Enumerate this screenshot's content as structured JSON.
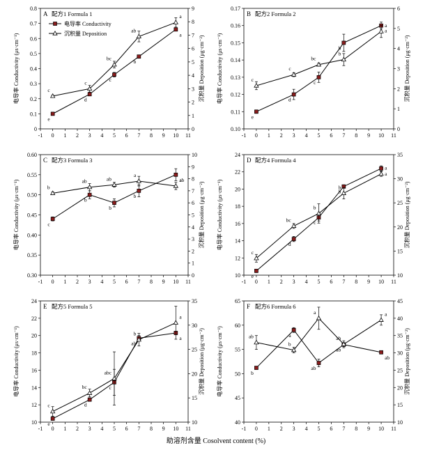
{
  "figure": {
    "x_axis_label": "助溶剂含量 Cosolvent content (%)"
  },
  "colors": {
    "line": "#000000",
    "conductivity_marker": "#8b1c1c",
    "deposition_marker": "#ffffff"
  },
  "chart_data": [
    {
      "type": "line",
      "panel": "A",
      "title": "配方1 Formula 1",
      "xlabel": "",
      "ylabel": "电导率 Conductivity (μs·cm⁻¹)",
      "y2label": "沉积量 Deposition (μg·cm⁻²)",
      "xlim": [
        -1,
        11
      ],
      "xticks": [
        -1,
        0,
        1,
        2,
        3,
        4,
        5,
        6,
        7,
        8,
        9,
        10,
        11
      ],
      "ylim": [
        0,
        0.8
      ],
      "yticks": [
        "0",
        "0.1",
        "0.2",
        "0.3",
        "0.4",
        "0.5",
        "0.6",
        "0.7",
        "0.8"
      ],
      "y2lim": [
        0,
        9
      ],
      "y2ticks": [
        "0",
        "1",
        "2",
        "3",
        "4",
        "5",
        "6",
        "7",
        "8",
        "9"
      ],
      "legend": [
        "电导率 Conductivity",
        "沉积量 Deposition"
      ],
      "legend_position": "top-left",
      "x": [
        0,
        3,
        5,
        7,
        10
      ],
      "series": [
        {
          "name": "电导率 Conductivity",
          "axis": "left",
          "marker": "square",
          "values": [
            0.1,
            0.23,
            0.36,
            0.48,
            0.66
          ],
          "errors": [
            0.005,
            0.01,
            0.015,
            0.01,
            0.01
          ],
          "letters": [
            "e",
            "d",
            "c",
            "b",
            "a"
          ]
        },
        {
          "name": "沉积量 Deposition",
          "axis": "right",
          "marker": "triangle",
          "values": [
            2.45,
            3.0,
            4.8,
            6.9,
            7.95
          ],
          "errors": [
            0.08,
            0.25,
            0.25,
            0.4,
            0.35
          ],
          "letters": [
            "c",
            "c",
            "bc",
            "ab",
            "a"
          ]
        }
      ]
    },
    {
      "type": "line",
      "panel": "B",
      "title": "配方2 Formula 2",
      "xlabel": "",
      "ylabel": "电导率 Conductivity (μs·cm⁻¹)",
      "y2label": "沉积量 Deposition (μg·cm⁻²)",
      "xlim": [
        -1,
        11
      ],
      "xticks": [
        -1,
        0,
        1,
        2,
        3,
        4,
        5,
        6,
        7,
        8,
        9,
        10,
        11
      ],
      "ylim": [
        0.1,
        0.17
      ],
      "yticks": [
        "0.10",
        "0.11",
        "0.12",
        "0.13",
        "0.14",
        "0.15",
        "0.16",
        "0.17"
      ],
      "y2lim": [
        0,
        6
      ],
      "y2ticks": [
        "0",
        "1",
        "2",
        "3",
        "4",
        "5",
        "6"
      ],
      "x": [
        0,
        3,
        5,
        7,
        10
      ],
      "series": [
        {
          "name": "电导率 Conductivity",
          "axis": "left",
          "marker": "square",
          "values": [
            0.11,
            0.12,
            0.13,
            0.15,
            0.16
          ],
          "errors": [
            0.001,
            0.003,
            0.003,
            0.005,
            0.002
          ],
          "letters": [
            "e",
            "d",
            "c",
            "b",
            "a"
          ]
        },
        {
          "name": "沉积量 Deposition",
          "axis": "right",
          "marker": "triangle",
          "values": [
            2.15,
            2.7,
            3.2,
            3.45,
            4.85
          ],
          "errors": [
            0.2,
            0.1,
            0.08,
            0.3,
            0.3
          ],
          "letters": [
            "c",
            "c",
            "bc",
            "b",
            "a"
          ]
        }
      ]
    },
    {
      "type": "line",
      "panel": "C",
      "title": "配方3 Formula 3",
      "xlabel": "",
      "ylabel": "电导率 Conductivity (μs·cm⁻¹)",
      "y2label": "沉积量 Deposition (μg·cm⁻²)",
      "xlim": [
        -1,
        11
      ],
      "xticks": [
        -1,
        0,
        1,
        2,
        3,
        4,
        5,
        6,
        7,
        8,
        9,
        10,
        11
      ],
      "ylim": [
        0.3,
        0.6
      ],
      "yticks": [
        "0.30",
        "0.35",
        "0.40",
        "0.45",
        "0.50",
        "0.55",
        "0.60"
      ],
      "y2lim": [
        0,
        10
      ],
      "y2ticks": [
        "0",
        "1",
        "2",
        "3",
        "4",
        "5",
        "6",
        "7",
        "8",
        "9",
        "10"
      ],
      "x": [
        0,
        3,
        5,
        7,
        10
      ],
      "series": [
        {
          "name": "电导率 Conductivity",
          "axis": "left",
          "marker": "square",
          "values": [
            0.44,
            0.5,
            0.48,
            0.51,
            0.55
          ],
          "errors": [
            0.005,
            0.01,
            0.01,
            0.015,
            0.015
          ],
          "letters": [
            "c",
            "b",
            "b",
            "b",
            "a"
          ]
        },
        {
          "name": "沉积量 Deposition",
          "axis": "right",
          "marker": "triangle",
          "values": [
            6.8,
            7.3,
            7.5,
            7.8,
            7.4
          ],
          "errors": [
            0.1,
            0.3,
            0.2,
            0.4,
            0.3
          ],
          "letters": [
            "b",
            "ab",
            "ab",
            "a",
            "ab"
          ]
        }
      ]
    },
    {
      "type": "line",
      "panel": "D",
      "title": "配方4 Formula 4",
      "xlabel": "",
      "ylabel": "电导率 Conductivity (μs·cm⁻¹)",
      "y2label": "沉积量 Deposition (μg·cm⁻²)",
      "xlim": [
        -1,
        11
      ],
      "xticks": [
        -1,
        0,
        1,
        2,
        3,
        4,
        5,
        6,
        7,
        8,
        9,
        10,
        11
      ],
      "ylim": [
        10,
        24
      ],
      "yticks": [
        "10",
        "12",
        "14",
        "16",
        "18",
        "20",
        "22",
        "24"
      ],
      "y2lim": [
        10,
        35
      ],
      "y2ticks": [
        "10",
        "15",
        "20",
        "25",
        "30",
        "35"
      ],
      "x": [
        0,
        3,
        5,
        7,
        10
      ],
      "series": [
        {
          "name": "电导率 Conductivity",
          "axis": "left",
          "marker": "square",
          "values": [
            10.5,
            14.2,
            16.7,
            20.3,
            22.4
          ],
          "errors": [
            0.2,
            0.3,
            0.4,
            0.2,
            0.3
          ],
          "letters": [
            "e",
            "d",
            "c",
            "b",
            "a"
          ]
        },
        {
          "name": "沉积量 Deposition",
          "axis": "right",
          "marker": "triangle",
          "values": [
            13.5,
            20.2,
            22.8,
            27.0,
            31.0
          ],
          "errors": [
            0.8,
            0.5,
            2.0,
            1.2,
            0.5
          ],
          "letters": [
            "c",
            "bc",
            "b",
            "b",
            "a"
          ]
        }
      ]
    },
    {
      "type": "line",
      "panel": "E",
      "title": "配方5 Formula 5",
      "xlabel": "",
      "ylabel": "电导率 Conductivity (μs·cm⁻¹)",
      "y2label": "沉积量 Deposition (μg·cm⁻²)",
      "xlim": [
        -1,
        11
      ],
      "xticks": [
        -1,
        0,
        1,
        2,
        3,
        4,
        5,
        6,
        7,
        8,
        9,
        10,
        11
      ],
      "ylim": [
        10,
        24
      ],
      "yticks": [
        "10",
        "12",
        "14",
        "16",
        "18",
        "20",
        "22",
        "24"
      ],
      "y2lim": [
        10,
        35
      ],
      "y2ticks": [
        "10",
        "15",
        "20",
        "25",
        "30",
        "35"
      ],
      "x": [
        0,
        3,
        5,
        7,
        10
      ],
      "series": [
        {
          "name": "电导率 Conductivity",
          "axis": "left",
          "marker": "square",
          "values": [
            10.4,
            12.6,
            14.6,
            19.7,
            20.3
          ],
          "errors": [
            0.1,
            0.2,
            1.5,
            0.3,
            0.2
          ],
          "letters": [
            "e",
            "d",
            "c",
            "ab",
            "a"
          ]
        },
        {
          "name": "沉积量 Deposition",
          "axis": "right",
          "marker": "triangle",
          "values": [
            12.2,
            16.0,
            19.0,
            27.0,
            30.5
          ],
          "errors": [
            1.0,
            0.8,
            5.5,
            1.3,
            3.4
          ],
          "letters": [
            "c",
            "bc",
            "abc",
            "b",
            "a"
          ]
        }
      ]
    },
    {
      "type": "line",
      "panel": "F",
      "title": "配方6 Formula 6",
      "xlabel": "",
      "ylabel": "电导率 Conductivity (μs·cm⁻¹)",
      "y2label": "沉积量 Deposition (μg·cm⁻²)",
      "xlim": [
        -1,
        11
      ],
      "xticks": [
        -1,
        0,
        1,
        2,
        3,
        4,
        5,
        6,
        7,
        8,
        9,
        10,
        11
      ],
      "ylim": [
        40,
        65
      ],
      "yticks": [
        "40",
        "45",
        "50",
        "55",
        "60",
        "65"
      ],
      "y2lim": [
        10,
        45
      ],
      "y2ticks": [
        "10",
        "15",
        "20",
        "25",
        "30",
        "35",
        "40",
        "45"
      ],
      "x": [
        0,
        3,
        5,
        7,
        10
      ],
      "series": [
        {
          "name": "电导率 Conductivity",
          "axis": "left",
          "marker": "square",
          "values": [
            51.2,
            59.0,
            52.2,
            56.0,
            54.4
          ],
          "errors": [
            0.2,
            0.5,
            0.8,
            0.4,
            0.2
          ],
          "letters": [
            "b",
            "a",
            "ab",
            "ab",
            "ab"
          ]
        },
        {
          "name": "沉积量 Deposition",
          "axis": "right",
          "marker": "triangle",
          "values": [
            33.0,
            30.8,
            40.0,
            32.5,
            39.5
          ],
          "errors": [
            2.0,
            0.8,
            3.2,
            1.0,
            1.5
          ],
          "letters": [
            "ab",
            "b",
            "a",
            "ab",
            "a"
          ]
        }
      ]
    }
  ]
}
